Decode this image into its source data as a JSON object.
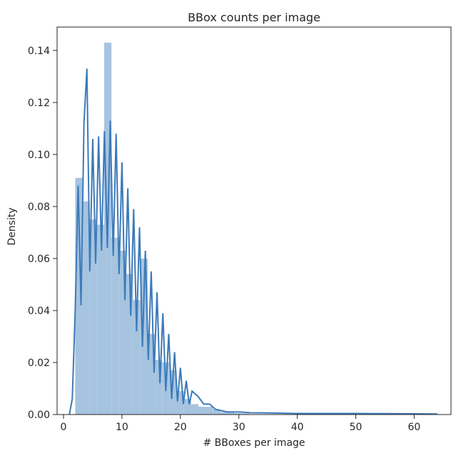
{
  "chart_data": {
    "type": "bar",
    "title": "BBox counts per image",
    "xlabel": "# BBoxes per image",
    "ylabel": "Density",
    "xlim": [
      -1.1,
      66.3
    ],
    "ylim": [
      0,
      0.149
    ],
    "x_ticks": [
      0,
      10,
      20,
      30,
      40,
      50,
      60
    ],
    "x_tick_labels": [
      "0",
      "10",
      "20",
      "30",
      "40",
      "50",
      "60"
    ],
    "y_ticks": [
      0.0,
      0.02,
      0.04,
      0.06,
      0.08,
      0.1,
      0.12,
      0.14
    ],
    "y_tick_labels": [
      "0.00",
      "0.02",
      "0.04",
      "0.06",
      "0.08",
      "0.10",
      "0.12",
      "0.14"
    ],
    "grid": false,
    "colors": {
      "hist": "#a6c4e0",
      "kde": "#3d7ab8",
      "axis": "#262626"
    },
    "histogram": {
      "bin_width": 1.24,
      "edges": [
        2,
        3.24,
        4.48,
        5.72,
        6.96,
        8.2,
        9.44,
        10.68,
        11.92,
        13.16,
        14.4,
        15.64,
        16.88,
        18.12,
        19.36,
        20.6,
        21.84,
        23.08,
        24.32,
        25.56,
        26.8,
        28.04,
        29.28,
        30.52,
        31.76
      ],
      "values": [
        0.091,
        0.082,
        0.075,
        0.073,
        0.143,
        0.068,
        0.063,
        0.054,
        0.044,
        0.06,
        0.031,
        0.021,
        0.02,
        0.017,
        0.009,
        0.006,
        0.004,
        0.003,
        0.003,
        0.002,
        0.001,
        0.001,
        0.0005,
        0.0004
      ]
    },
    "kde": {
      "x": [
        1.0,
        1.5,
        2.0,
        2.5,
        3.0,
        3.5,
        4.0,
        4.5,
        5.0,
        5.5,
        6.0,
        6.5,
        7.0,
        7.5,
        8.0,
        8.5,
        9.0,
        9.5,
        10.0,
        10.5,
        11.0,
        11.5,
        12.0,
        12.5,
        13.0,
        13.5,
        14.0,
        14.5,
        15.0,
        15.5,
        16.0,
        16.5,
        17.0,
        17.5,
        18.0,
        18.5,
        19.0,
        19.5,
        20.0,
        20.5,
        21.0,
        21.5,
        22.0,
        23.0,
        24.0,
        25.0,
        26.0,
        27.0,
        28.0,
        30.0,
        32.0,
        35.0,
        40.0,
        50.0,
        60.0,
        64.0
      ],
      "y": [
        0.0,
        0.006,
        0.04,
        0.088,
        0.042,
        0.112,
        0.133,
        0.055,
        0.106,
        0.058,
        0.107,
        0.063,
        0.109,
        0.064,
        0.113,
        0.061,
        0.108,
        0.054,
        0.097,
        0.044,
        0.087,
        0.038,
        0.079,
        0.032,
        0.072,
        0.026,
        0.063,
        0.021,
        0.055,
        0.016,
        0.047,
        0.012,
        0.039,
        0.009,
        0.031,
        0.006,
        0.024,
        0.005,
        0.018,
        0.004,
        0.013,
        0.004,
        0.009,
        0.007,
        0.004,
        0.004,
        0.002,
        0.0015,
        0.001,
        0.001,
        0.0007,
        0.0006,
        0.0004,
        0.0004,
        0.0003,
        0.0002
      ]
    }
  }
}
